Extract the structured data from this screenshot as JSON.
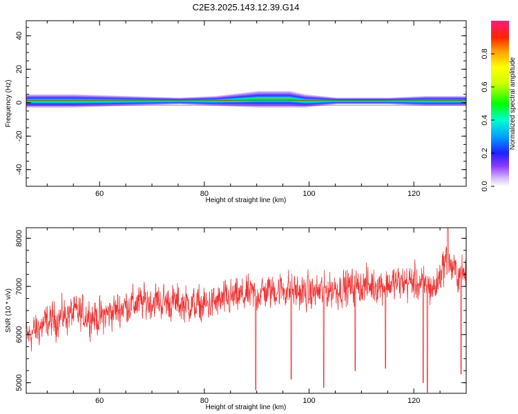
{
  "figure": {
    "title": "C2E3.2025.143.12.39.G14"
  },
  "chart_data": [
    {
      "type": "heatmap",
      "xlabel": "Height of straight line (km)",
      "ylabel": "Frequency (Hz)",
      "xlim": [
        46,
        130
      ],
      "ylim": [
        -50,
        49
      ],
      "xticks": [
        60,
        80,
        100,
        120
      ],
      "yticks": [
        -40,
        -20,
        0,
        20,
        40
      ],
      "colorbar": {
        "label": "Normalized spectral amplitude",
        "range": [
          0,
          1
        ],
        "ticks": [
          "0.0",
          "0.2",
          "0.4",
          "0.6",
          "0.8"
        ]
      },
      "band": [
        {
          "x": 46,
          "center": 1,
          "halfwidth": 4
        },
        {
          "x": 55,
          "center": 1,
          "halfwidth": 4
        },
        {
          "x": 65,
          "center": 1,
          "halfwidth": 3
        },
        {
          "x": 75,
          "center": 1,
          "halfwidth": 2
        },
        {
          "x": 82,
          "center": 1,
          "halfwidth": 3
        },
        {
          "x": 90,
          "center": 2,
          "halfwidth": 5
        },
        {
          "x": 96,
          "center": 2,
          "halfwidth": 5
        },
        {
          "x": 99,
          "center": 1,
          "halfwidth": 4
        },
        {
          "x": 105,
          "center": 1,
          "halfwidth": 2
        },
        {
          "x": 115,
          "center": 1,
          "halfwidth": 2
        },
        {
          "x": 122,
          "center": 1,
          "halfwidth": 3
        },
        {
          "x": 130,
          "center": 1,
          "halfwidth": 3
        }
      ]
    },
    {
      "type": "line",
      "xlabel": "Height of straight line (km)",
      "ylabel": "SNR (10 * v/v)",
      "xlim": [
        46,
        130
      ],
      "ylim": [
        4780,
        8220
      ],
      "xticks": [
        60,
        80,
        100,
        120
      ],
      "yticks": [
        5000,
        6000,
        7000,
        8000
      ],
      "color": "#ee3333",
      "trend": [
        [
          46,
          5950
        ],
        [
          50,
          6250
        ],
        [
          55,
          6450
        ],
        [
          60,
          6350
        ],
        [
          65,
          6600
        ],
        [
          70,
          6700
        ],
        [
          75,
          6650
        ],
        [
          80,
          6600
        ],
        [
          85,
          6750
        ],
        [
          90,
          6850
        ],
        [
          95,
          6950
        ],
        [
          100,
          6850
        ],
        [
          105,
          6950
        ],
        [
          110,
          7000
        ],
        [
          115,
          7050
        ],
        [
          120,
          7100
        ],
        [
          124,
          6950
        ],
        [
          126,
          7550
        ],
        [
          128,
          7300
        ],
        [
          130,
          7200
        ]
      ],
      "spikes": [
        [
          89.8,
          4850
        ],
        [
          96.6,
          5070
        ],
        [
          102.8,
          4900
        ],
        [
          108.8,
          5250
        ],
        [
          114.6,
          5300
        ],
        [
          121.8,
          5000
        ],
        [
          122.6,
          4800
        ],
        [
          129.0,
          5180
        ]
      ],
      "peak": [
        126.5,
        8200
      ]
    }
  ]
}
